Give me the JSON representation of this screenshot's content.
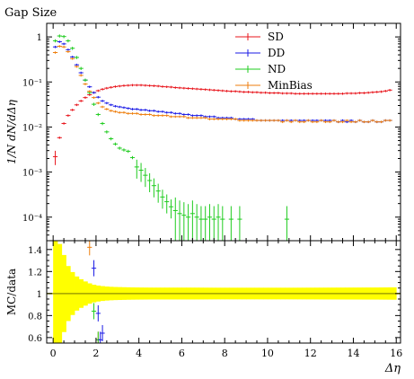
{
  "chart_data": {
    "type": "scatter",
    "title": "Gap Size",
    "xlabel": "Δη",
    "xlim": [
      -0.3,
      16.2
    ],
    "x_ticks": [
      0,
      2,
      4,
      6,
      8,
      10,
      12,
      14,
      16
    ],
    "legend_position": "top-right",
    "main": {
      "ylabel": "1/N dN/dΔη",
      "yscale": "log",
      "ylim": [
        3e-05,
        2.0
      ],
      "y_ticks": [
        {
          "v": 1,
          "label": "1"
        },
        {
          "v": 0.1,
          "label": "10⁻¹"
        },
        {
          "v": 0.01,
          "label": "10⁻²"
        },
        {
          "v": 0.001,
          "label": "10⁻³"
        },
        {
          "v": 0.0001,
          "label": "10⁻⁴"
        }
      ],
      "series": [
        {
          "name": "SD",
          "color": "#e8141b",
          "x": [
            0.1,
            0.3,
            0.5,
            0.7,
            0.9,
            1.1,
            1.3,
            1.5,
            1.7,
            1.9,
            2.1,
            2.3,
            2.5,
            2.7,
            2.9,
            3.1,
            3.3,
            3.5,
            3.7,
            3.9,
            4.1,
            4.3,
            4.5,
            4.7,
            4.9,
            5.1,
            5.3,
            5.5,
            5.7,
            5.9,
            6.1,
            6.3,
            6.5,
            6.7,
            6.9,
            7.1,
            7.3,
            7.5,
            7.7,
            7.9,
            8.1,
            8.3,
            8.5,
            8.7,
            8.9,
            9.1,
            9.3,
            9.5,
            9.7,
            9.9,
            10.1,
            10.3,
            10.5,
            10.7,
            10.9,
            11.1,
            11.3,
            11.5,
            11.7,
            11.9,
            12.1,
            12.3,
            12.5,
            12.7,
            12.9,
            13.1,
            13.3,
            13.5,
            13.7,
            13.9,
            14.1,
            14.3,
            14.5,
            14.7,
            14.9,
            15.1,
            15.3,
            15.5,
            15.7
          ],
          "y": [
            0.0022,
            0.0058,
            0.012,
            0.018,
            0.024,
            0.031,
            0.038,
            0.045,
            0.052,
            0.058,
            0.064,
            0.069,
            0.073,
            0.076,
            0.079,
            0.081,
            0.083,
            0.084,
            0.085,
            0.085,
            0.085,
            0.084,
            0.083,
            0.082,
            0.081,
            0.079,
            0.078,
            0.077,
            0.075,
            0.074,
            0.073,
            0.072,
            0.071,
            0.07,
            0.069,
            0.068,
            0.067,
            0.066,
            0.065,
            0.064,
            0.063,
            0.062,
            0.062,
            0.061,
            0.06,
            0.06,
            0.059,
            0.059,
            0.058,
            0.058,
            0.057,
            0.057,
            0.057,
            0.056,
            0.056,
            0.056,
            0.055,
            0.055,
            0.055,
            0.055,
            0.055,
            0.055,
            0.055,
            0.055,
            0.055,
            0.055,
            0.055,
            0.055,
            0.056,
            0.056,
            0.056,
            0.057,
            0.057,
            0.058,
            0.059,
            0.06,
            0.061,
            0.063,
            0.066
          ]
        },
        {
          "name": "DD",
          "color": "#1a1ae6",
          "x": [
            0.1,
            0.3,
            0.5,
            0.7,
            0.9,
            1.1,
            1.3,
            1.5,
            1.7,
            1.9,
            2.1,
            2.3,
            2.5,
            2.7,
            2.9,
            3.1,
            3.3,
            3.5,
            3.7,
            3.9,
            4.1,
            4.3,
            4.5,
            4.7,
            4.9,
            5.1,
            5.3,
            5.5,
            5.7,
            5.9,
            6.1,
            6.3,
            6.5,
            6.7,
            6.9,
            7.1,
            7.3,
            7.5,
            7.7,
            7.9,
            8.1,
            8.3,
            8.5,
            8.7,
            8.9,
            9.1,
            9.3,
            9.5,
            9.7,
            9.9,
            10.1,
            10.3,
            10.5,
            10.7,
            10.9,
            11.1,
            11.3,
            11.5,
            11.7,
            11.9,
            12.1,
            12.3,
            12.5,
            12.7,
            12.9,
            13.1,
            13.3,
            13.5,
            13.7,
            13.9,
            14.1,
            14.3,
            14.5,
            14.7,
            14.9,
            15.1,
            15.3,
            15.5,
            15.7
          ],
          "y": [
            0.6,
            0.78,
            0.7,
            0.52,
            0.36,
            0.24,
            0.16,
            0.11,
            0.078,
            0.058,
            0.046,
            0.038,
            0.034,
            0.031,
            0.029,
            0.028,
            0.027,
            0.026,
            0.025,
            0.025,
            0.024,
            0.024,
            0.023,
            0.023,
            0.022,
            0.022,
            0.021,
            0.021,
            0.02,
            0.02,
            0.019,
            0.019,
            0.018,
            0.018,
            0.018,
            0.017,
            0.017,
            0.017,
            0.016,
            0.016,
            0.016,
            0.016,
            0.015,
            0.015,
            0.015,
            0.015,
            0.015,
            0.014,
            0.014,
            0.014,
            0.014,
            0.014,
            0.014,
            0.014,
            0.014,
            0.014,
            0.014,
            0.014,
            0.014,
            0.014,
            0.014,
            0.014,
            0.014,
            0.014,
            0.014,
            0.014,
            0.013,
            0.014,
            0.013,
            0.014,
            0.013,
            0.014,
            0.013,
            0.013,
            0.014,
            0.013,
            0.013,
            0.014,
            0.014
          ]
        },
        {
          "name": "ND",
          "color": "#1fcc1f",
          "x": [
            0.1,
            0.3,
            0.5,
            0.7,
            0.9,
            1.1,
            1.3,
            1.5,
            1.7,
            1.9,
            2.1,
            2.3,
            2.5,
            2.7,
            2.9,
            3.1,
            3.3,
            3.5,
            3.7,
            3.9,
            4.1,
            4.3,
            4.5,
            4.7,
            4.9,
            5.1,
            5.3,
            5.5,
            5.7,
            5.9,
            6.1,
            6.3,
            6.5,
            6.7,
            6.9,
            7.1,
            7.3,
            7.5,
            7.7,
            7.9,
            8.3,
            8.7,
            10.9
          ],
          "y": [
            0.82,
            1.05,
            1.02,
            0.82,
            0.56,
            0.35,
            0.2,
            0.11,
            0.058,
            0.032,
            0.019,
            0.012,
            0.0078,
            0.0055,
            0.0042,
            0.0034,
            0.0031,
            0.0029,
            0.0021,
            0.0013,
            0.0011,
            0.00085,
            0.00065,
            0.0005,
            0.00038,
            0.00028,
            0.00022,
            0.00017,
            0.00014,
            0.00012,
            0.00011,
            0.0001,
            0.00012,
            0.0001,
            9e-05,
            9e-05,
            0.0001,
            9e-05,
            0.0001,
            9e-05,
            9e-05,
            9e-05,
            9e-05
          ]
        },
        {
          "name": "MinBias",
          "color": "#ee7e0c",
          "x": [
            0.1,
            0.3,
            0.5,
            0.7,
            0.9,
            1.1,
            1.3,
            1.5,
            1.7,
            1.9,
            2.1,
            2.3,
            2.5,
            2.7,
            2.9,
            3.1,
            3.3,
            3.5,
            3.7,
            3.9,
            4.1,
            4.3,
            4.5,
            4.7,
            4.9,
            5.1,
            5.3,
            5.5,
            5.7,
            5.9,
            6.1,
            6.3,
            6.5,
            6.7,
            6.9,
            7.1,
            7.3,
            7.5,
            7.7,
            7.9,
            8.1,
            8.3,
            8.5,
            8.7,
            8.9,
            9.1,
            9.3,
            9.5,
            9.7,
            9.9,
            10.1,
            10.3,
            10.5,
            10.7,
            10.9,
            11.1,
            11.3,
            11.5,
            11.7,
            11.9,
            12.1,
            12.3,
            12.5,
            12.7,
            12.9,
            13.1,
            13.3,
            13.5,
            13.7,
            13.9,
            14.1,
            14.3,
            14.5,
            14.7,
            14.9,
            15.1,
            15.3,
            15.5,
            15.7
          ],
          "y": [
            0.45,
            0.62,
            0.6,
            0.47,
            0.33,
            0.22,
            0.14,
            0.09,
            0.062,
            0.045,
            0.034,
            0.028,
            0.025,
            0.023,
            0.022,
            0.021,
            0.021,
            0.02,
            0.02,
            0.02,
            0.019,
            0.019,
            0.019,
            0.018,
            0.018,
            0.018,
            0.018,
            0.017,
            0.017,
            0.017,
            0.017,
            0.016,
            0.016,
            0.016,
            0.016,
            0.016,
            0.015,
            0.015,
            0.015,
            0.015,
            0.015,
            0.015,
            0.015,
            0.014,
            0.014,
            0.014,
            0.014,
            0.014,
            0.014,
            0.014,
            0.014,
            0.014,
            0.014,
            0.013,
            0.014,
            0.013,
            0.014,
            0.013,
            0.013,
            0.014,
            0.013,
            0.013,
            0.014,
            0.013,
            0.013,
            0.014,
            0.013,
            0.013,
            0.014,
            0.013,
            0.013,
            0.014,
            0.013,
            0.013,
            0.014,
            0.013,
            0.013,
            0.014,
            0.014
          ]
        }
      ]
    },
    "ratio": {
      "ylabel": "MC/data",
      "ylim": [
        0.55,
        1.48
      ],
      "y_ticks": [
        {
          "v": 0.6,
          "label": "0.6"
        },
        {
          "v": 0.8,
          "label": "0.8"
        },
        {
          "v": 1.0,
          "label": "1"
        },
        {
          "v": 1.2,
          "label": "1.2"
        },
        {
          "v": 1.4,
          "label": "1.4"
        }
      ],
      "band_color": "#ffff00",
      "reference_color": "#a0a000",
      "band_x": [
        0.1,
        0.3,
        0.5,
        0.7,
        0.9,
        1.1,
        1.3,
        1.5,
        1.7,
        1.9,
        2.3,
        2.7,
        3.1,
        3.5,
        3.9,
        4.5,
        5.5,
        6.5,
        7.5,
        9,
        11,
        13,
        15,
        15.8
      ],
      "band_halfwidth": [
        0.48,
        0.42,
        0.28,
        0.22,
        0.17,
        0.14,
        0.12,
        0.1,
        0.085,
        0.075,
        0.065,
        0.06,
        0.058,
        0.056,
        0.055,
        0.054,
        0.054,
        0.054,
        0.053,
        0.053,
        0.053,
        0.054,
        0.055,
        0.056
      ],
      "markers": [
        {
          "series": "MinBias",
          "x": 1.7,
          "y": 1.42
        },
        {
          "series": "DD",
          "x": 1.9,
          "y": 1.23
        },
        {
          "series": "ND",
          "x": 1.9,
          "y": 0.84
        },
        {
          "series": "DD",
          "x": 2.1,
          "y": 0.82
        },
        {
          "series": "DD",
          "x": 2.3,
          "y": 0.64
        },
        {
          "series": "MinBias",
          "x": 2.1,
          "y": 0.58
        },
        {
          "series": "ND",
          "x": 2.1,
          "y": 0.58
        },
        {
          "series": "DD",
          "x": 2.2,
          "y": 0.58
        }
      ]
    }
  }
}
